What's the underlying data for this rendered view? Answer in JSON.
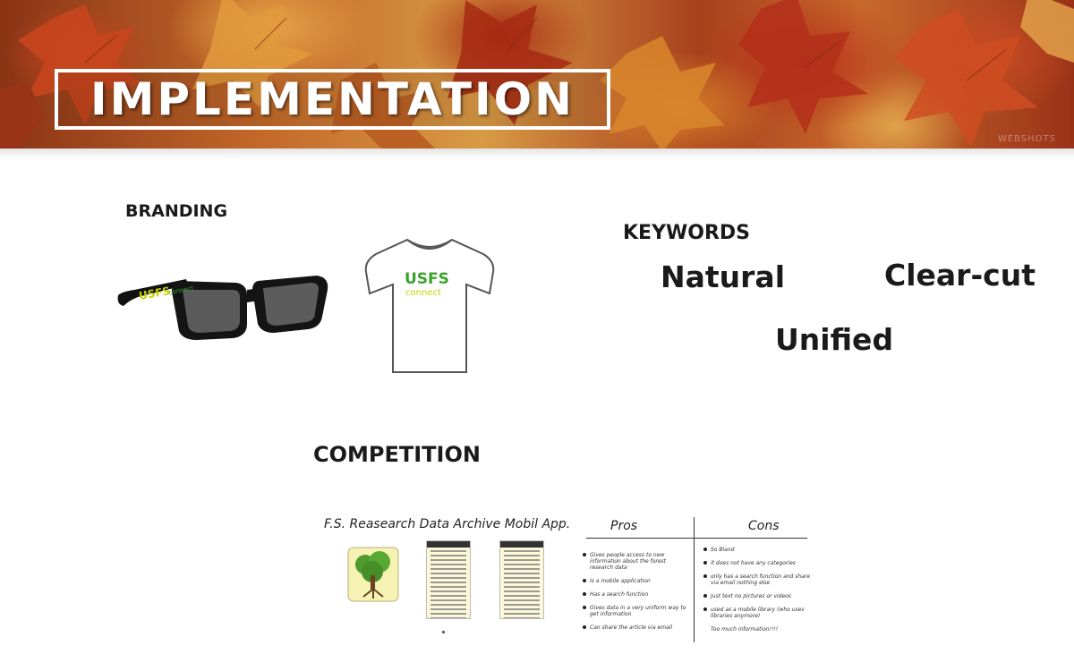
{
  "banner": {
    "title": "IMPLEMENTATION",
    "watermark": "WEBSHOTS",
    "palette": [
      "#8a3416",
      "#c46a2a",
      "#d89a45",
      "#a8401c",
      "#e8a547"
    ]
  },
  "branding": {
    "heading": "BRANDING",
    "glasses_logo_main": "USFS",
    "glasses_logo_sub": "connect",
    "shirt_logo_main": "USFS",
    "shirt_logo_sub": "connect",
    "logo_green": "#3aa32c",
    "logo_yellow": "#c8d000"
  },
  "keywords": {
    "heading": "KEYWORDS",
    "items": [
      "Natural",
      "Clear-cut",
      "Unified"
    ]
  },
  "competition": {
    "heading": "COMPETITION",
    "app_title": "F.S.  Reasearch Data Archive Mobil App.",
    "pros_heading": "Pros",
    "cons_heading": "Cons",
    "pros": [
      "Gives people access to new information about the forest research data",
      "Is a mobile application",
      "Has a search function",
      "Gives data in a very uniform way to get information",
      "Can share the article via email"
    ],
    "cons": [
      "So Bland",
      "it does not have any categories",
      "only has a search function and share via email nothing else",
      "Just text no pictures or videos",
      "used as a mobile library (who uses libraries anymore)",
      "Too much information!!!!"
    ]
  }
}
